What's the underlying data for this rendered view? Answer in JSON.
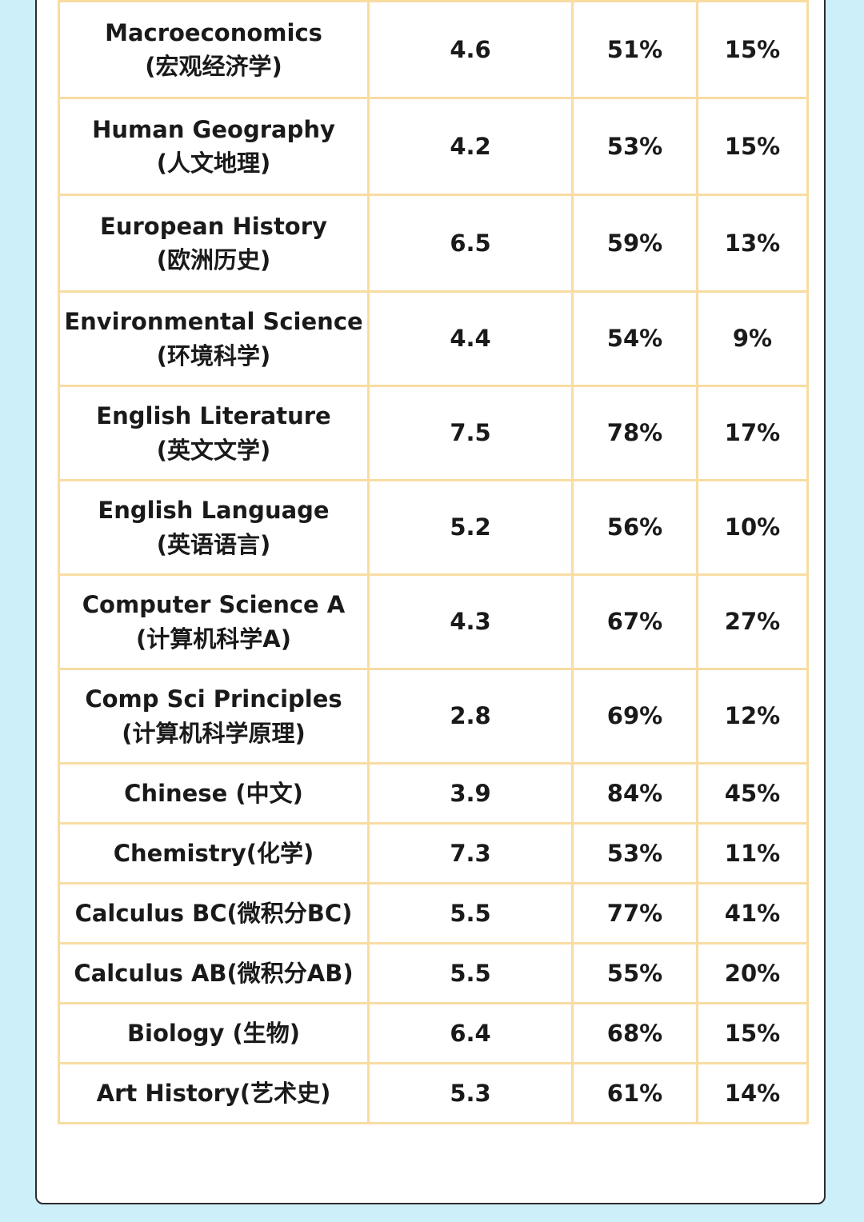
{
  "rows": [
    {
      "subject": [
        "Macroeconomics",
        "(宏观经济学)"
      ],
      "mean": "4.6",
      "pass_rate": "51%",
      "top_rate": "15%"
    },
    {
      "subject": [
        "Human Geography",
        "(人文地理)"
      ],
      "mean": "4.2",
      "pass_rate": "53%",
      "top_rate": "15%"
    },
    {
      "subject": [
        "European History",
        "(欧洲历史)"
      ],
      "mean": "6.5",
      "pass_rate": "59%",
      "top_rate": "13%"
    },
    {
      "subject": [
        "Environmental Science",
        "(环境科学)"
      ],
      "mean": "4.4",
      "pass_rate": "54%",
      "top_rate": "9%"
    },
    {
      "subject": [
        "English Literature",
        "(英文文学)"
      ],
      "mean": "7.5",
      "pass_rate": "78%",
      "top_rate": "17%"
    },
    {
      "subject": [
        "English Language",
        "(英语语言)"
      ],
      "mean": "5.2",
      "pass_rate": "56%",
      "top_rate": "10%"
    },
    {
      "subject": [
        "Computer Science A",
        "(计算机科学A)"
      ],
      "mean": "4.3",
      "pass_rate": "67%",
      "top_rate": "27%"
    },
    {
      "subject": [
        "Comp Sci Principles",
        "(计算机科学原理)"
      ],
      "mean": "2.8",
      "pass_rate": "69%",
      "top_rate": "12%"
    },
    {
      "subject": [
        "Chinese (中文)"
      ],
      "mean": "3.9",
      "pass_rate": "84%",
      "top_rate": "45%"
    },
    {
      "subject": [
        "Chemistry(化学)"
      ],
      "mean": "7.3",
      "pass_rate": "53%",
      "top_rate": "11%"
    },
    {
      "subject": [
        "Calculus BC(微积分BC)"
      ],
      "mean": "5.5",
      "pass_rate": "77%",
      "top_rate": "41%"
    },
    {
      "subject": [
        "Calculus AB(微积分AB)"
      ],
      "mean": "5.5",
      "pass_rate": "55%",
      "top_rate": "20%"
    },
    {
      "subject": [
        "Biology (生物)"
      ],
      "mean": "6.4",
      "pass_rate": "68%",
      "top_rate": "15%"
    },
    {
      "subject": [
        "Art History(艺术史)"
      ],
      "mean": "5.3",
      "pass_rate": "61%",
      "top_rate": "14%"
    }
  ]
}
